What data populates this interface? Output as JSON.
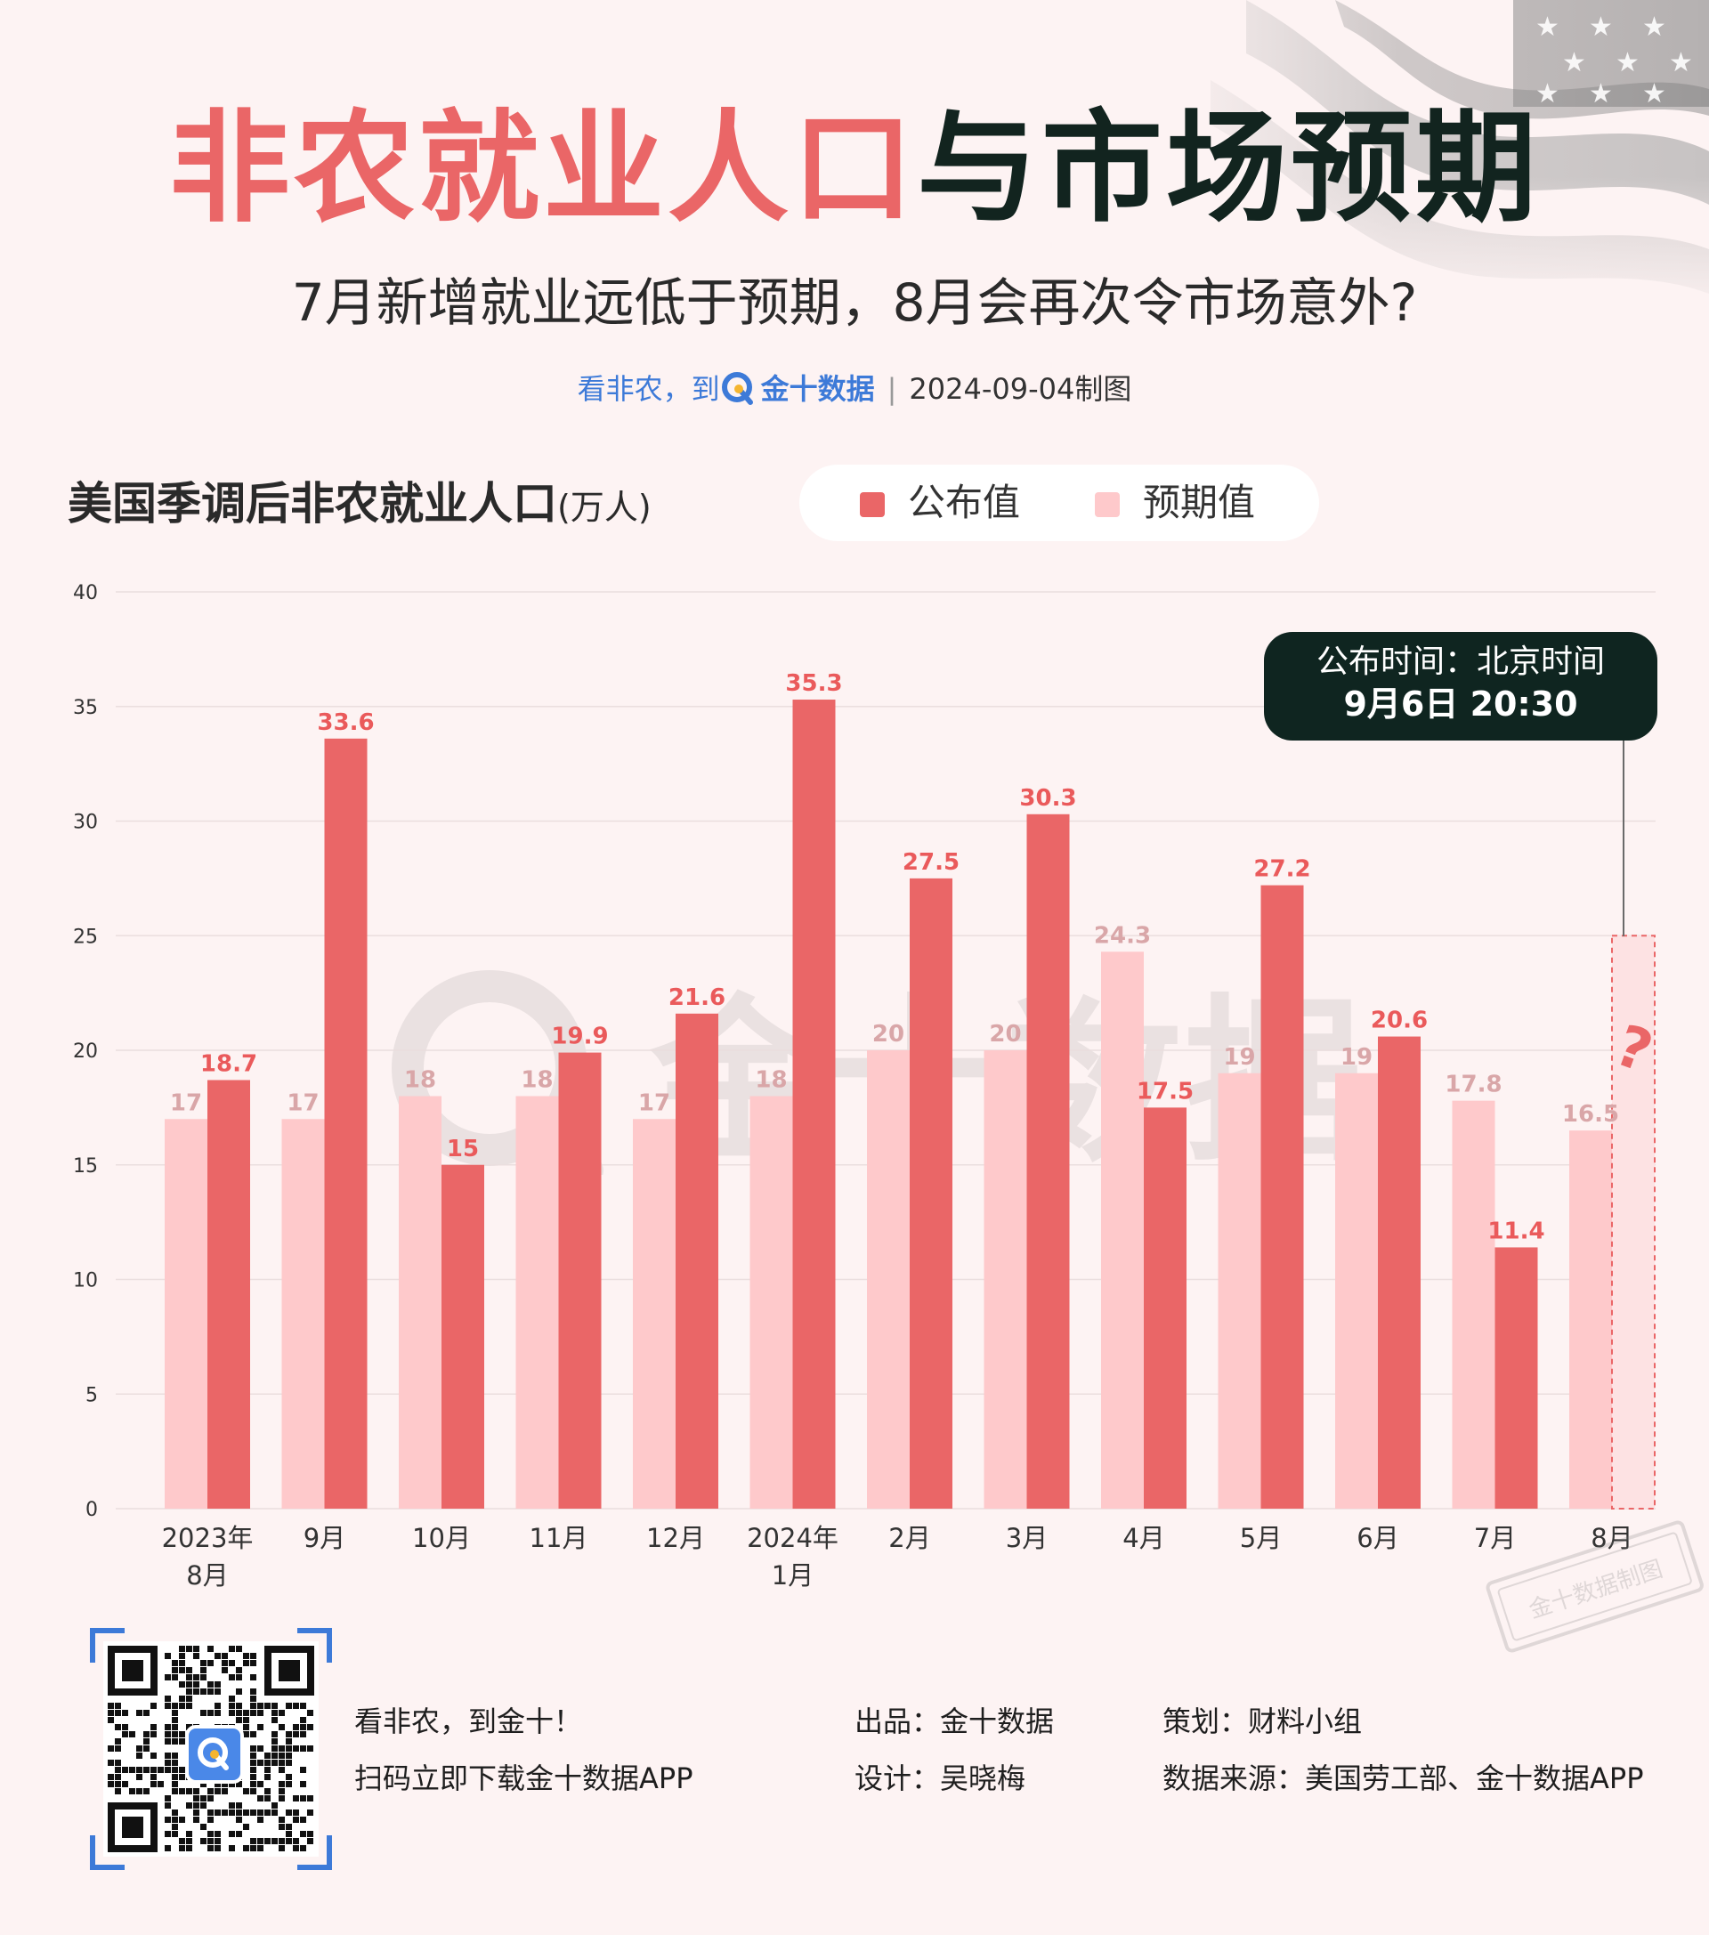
{
  "header": {
    "title_red": "非农就业人口",
    "title_dark": "与市场预期",
    "subtitle": "7月新增就业远低于预期，8月会再次令市场意外?",
    "meta_prefix": "看非农，到",
    "meta_brand": "金十数据",
    "meta_date": "2024-09-04制图"
  },
  "chart_header": {
    "title": "美国季调后非农就业人口",
    "unit": "(万人)"
  },
  "legend": {
    "actual_label": "公布值",
    "expected_label": "预期值"
  },
  "colors": {
    "actual": "#ea6667",
    "expected": "#fec9cb",
    "actual_label": "#ea5a5b",
    "expected_label": "#d9a6a8",
    "callout_bg": "#0f2520"
  },
  "chart_data": {
    "type": "bar",
    "categories": [
      "2023年\n8月",
      "9月",
      "10月",
      "11月",
      "12月",
      "2024年\n1月",
      "2月",
      "3月",
      "4月",
      "5月",
      "6月",
      "7月",
      "8月"
    ],
    "series": [
      {
        "name": "预期值",
        "values": [
          17,
          17,
          18,
          18,
          17,
          18,
          20,
          20,
          24.3,
          19,
          19,
          17.8,
          16.5
        ]
      },
      {
        "name": "公布值",
        "values": [
          18.7,
          33.6,
          15,
          19.9,
          21.6,
          35.3,
          27.5,
          30.3,
          17.5,
          27.2,
          20.6,
          11.4,
          null
        ]
      }
    ],
    "ylim": [
      0,
      40
    ],
    "yticks": [
      0,
      5,
      10,
      15,
      20,
      25,
      30,
      35,
      40
    ],
    "grid": true,
    "legend_position": "top-right",
    "pending_marker": "?",
    "pending_placeholder_level": 25
  },
  "callout": {
    "line1": "公布时间：北京时间",
    "line2": "9月6日 20:30"
  },
  "watermark": "金十数据",
  "stamp_text": "金十数据制图",
  "footer": {
    "slogan": "看非农，到金十！",
    "download": "扫码立即下载金十数据APP",
    "producer": "出品：金十数据",
    "designer": "设计：吴晓梅",
    "planner": "策划：财料小组",
    "source": "数据来源：美国劳工部、金十数据APP"
  }
}
